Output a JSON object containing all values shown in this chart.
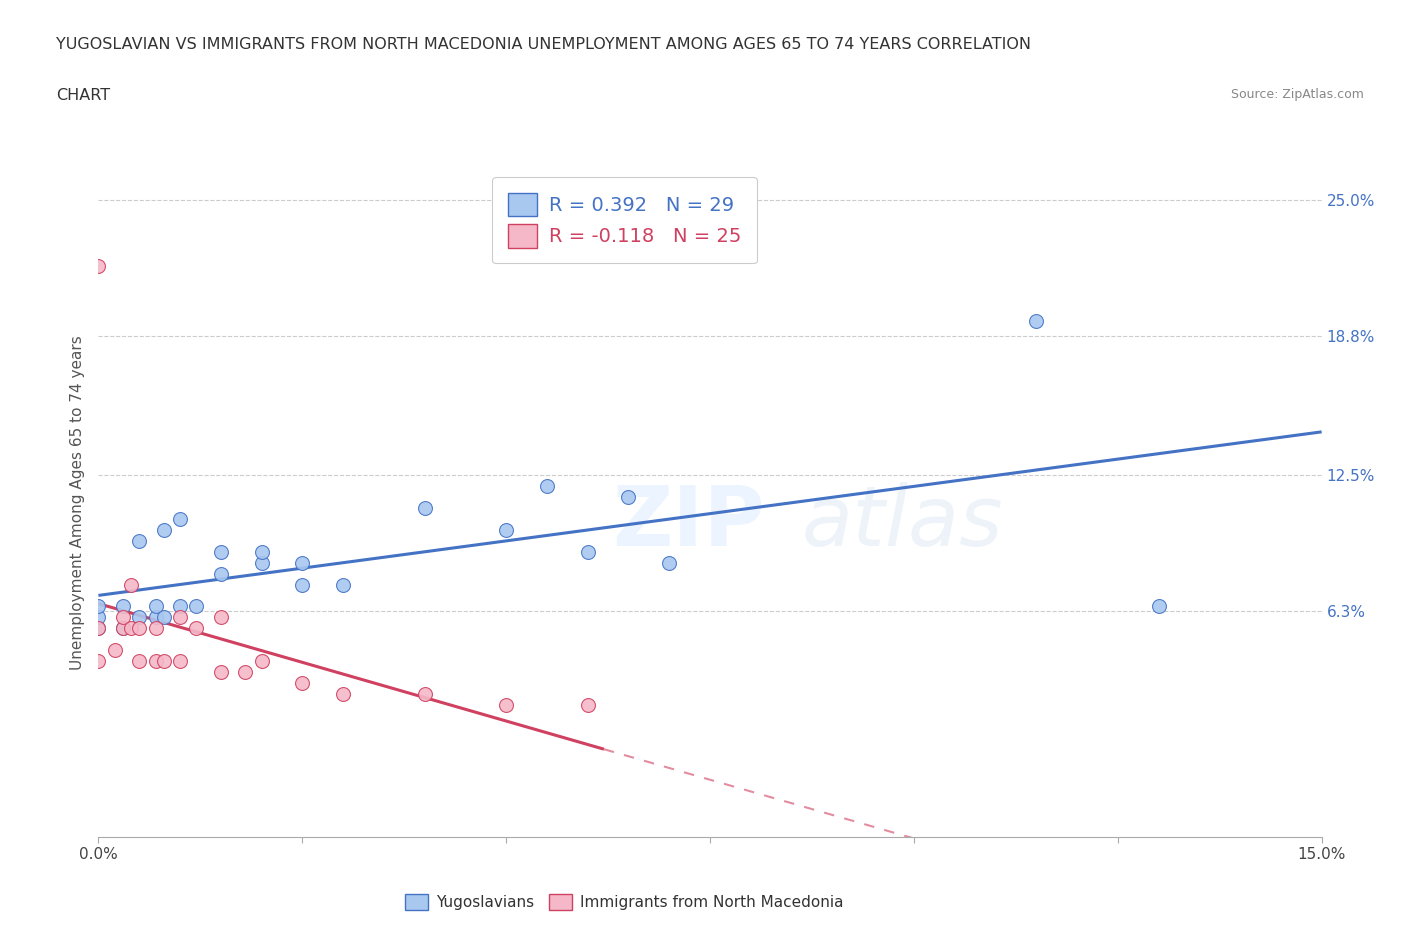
{
  "title_line1": "YUGOSLAVIAN VS IMMIGRANTS FROM NORTH MACEDONIA UNEMPLOYMENT AMONG AGES 65 TO 74 YEARS CORRELATION",
  "title_line2": "CHART",
  "source": "Source: ZipAtlas.com",
  "ylabel": "Unemployment Among Ages 65 to 74 years",
  "xlim": [
    0.0,
    0.15
  ],
  "ylim": [
    -0.04,
    0.265
  ],
  "x_ticks": [
    0.0,
    0.025,
    0.05,
    0.075,
    0.1,
    0.125,
    0.15
  ],
  "x_tick_labels": [
    "0.0%",
    "",
    "",
    "",
    "",
    "",
    "15.0%"
  ],
  "y_tick_labels_right": [
    "6.3%",
    "12.5%",
    "18.8%",
    "25.0%"
  ],
  "y_tick_positions_right": [
    0.063,
    0.125,
    0.188,
    0.25
  ],
  "R_yugo": 0.392,
  "N_yugo": 29,
  "R_mac": -0.118,
  "N_mac": 25,
  "color_yugo": "#a8c8f0",
  "color_mac": "#f4b8c8",
  "color_yugo_line": "#4472c4",
  "color_mac_line": "#d04060",
  "yugo_x": [
    0.0,
    0.0,
    0.0,
    0.003,
    0.003,
    0.005,
    0.005,
    0.007,
    0.007,
    0.008,
    0.008,
    0.01,
    0.01,
    0.012,
    0.015,
    0.015,
    0.02,
    0.02,
    0.025,
    0.025,
    0.03,
    0.04,
    0.05,
    0.055,
    0.06,
    0.065,
    0.07,
    0.115,
    0.13
  ],
  "yugo_y": [
    0.055,
    0.06,
    0.065,
    0.055,
    0.065,
    0.06,
    0.095,
    0.06,
    0.065,
    0.06,
    0.1,
    0.065,
    0.105,
    0.065,
    0.08,
    0.09,
    0.085,
    0.09,
    0.075,
    0.085,
    0.075,
    0.11,
    0.1,
    0.12,
    0.09,
    0.115,
    0.085,
    0.195,
    0.065
  ],
  "mac_x": [
    0.0,
    0.0,
    0.0,
    0.002,
    0.003,
    0.003,
    0.004,
    0.004,
    0.005,
    0.005,
    0.007,
    0.007,
    0.008,
    0.01,
    0.01,
    0.012,
    0.015,
    0.015,
    0.018,
    0.02,
    0.025,
    0.03,
    0.04,
    0.05,
    0.06
  ],
  "mac_y": [
    0.04,
    0.055,
    0.22,
    0.045,
    0.055,
    0.06,
    0.055,
    0.075,
    0.04,
    0.055,
    0.04,
    0.055,
    0.04,
    0.04,
    0.06,
    0.055,
    0.035,
    0.06,
    0.035,
    0.04,
    0.03,
    0.025,
    0.025,
    0.02,
    0.02
  ]
}
